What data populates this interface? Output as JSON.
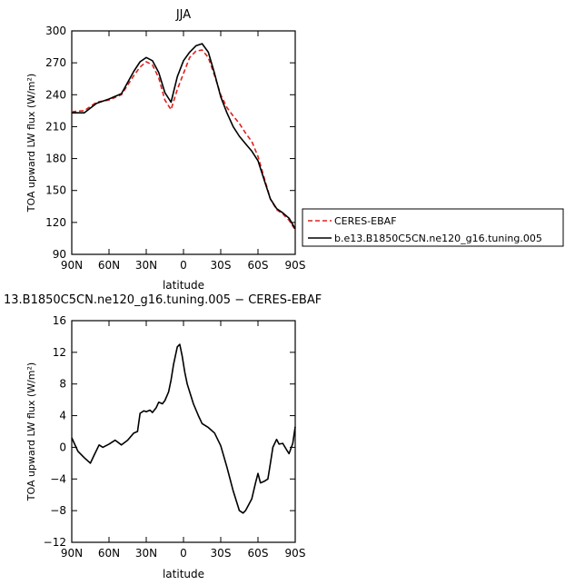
{
  "chart_data": [
    {
      "type": "line",
      "title": "JJA",
      "xlabel": "latitude",
      "ylabel": "TOA upward LW flux (W/m²)",
      "xlim": [
        90,
        -90
      ],
      "ylim": [
        90,
        300
      ],
      "xticks": [
        90,
        60,
        30,
        0,
        -30,
        -60,
        -90
      ],
      "xtick_labels": [
        "90N",
        "60N",
        "30N",
        "0",
        "30S",
        "60S",
        "90S"
      ],
      "yticks": [
        90,
        120,
        150,
        180,
        210,
        240,
        270,
        300
      ],
      "ytick_labels": [
        "90",
        "120",
        "150",
        "180",
        "210",
        "240",
        "270",
        "300"
      ],
      "legend_position": "right",
      "series": [
        {
          "name": "CERES-EBAF",
          "color": "#e0201b",
          "dash": "dashed",
          "x": [
            90,
            80,
            70,
            60,
            50,
            40,
            35,
            30,
            25,
            20,
            15,
            10,
            5,
            0,
            -5,
            -10,
            -15,
            -20,
            -25,
            -30,
            -35,
            -40,
            -45,
            -50,
            -55,
            -60,
            -65,
            -70,
            -75,
            -80,
            -85,
            -90
          ],
          "y": [
            224,
            225,
            233,
            235,
            240,
            258,
            266,
            271,
            268,
            256,
            235,
            226,
            245,
            260,
            275,
            281,
            282,
            275,
            258,
            240,
            228,
            220,
            213,
            204,
            196,
            182,
            162,
            142,
            132,
            128,
            122,
            113
          ]
        },
        {
          "name": "b.e13.B1850C5CN.ne120_g16.tuning.005",
          "color": "#000000",
          "dash": "solid",
          "x": [
            90,
            80,
            70,
            60,
            50,
            40,
            35,
            30,
            25,
            20,
            15,
            10,
            5,
            0,
            -5,
            -10,
            -15,
            -20,
            -25,
            -30,
            -35,
            -40,
            -45,
            -50,
            -55,
            -60,
            -65,
            -70,
            -75,
            -80,
            -85,
            -90
          ],
          "y": [
            223,
            223,
            232,
            236,
            241,
            262,
            271,
            275,
            272,
            261,
            242,
            233,
            257,
            272,
            280,
            286,
            288,
            280,
            260,
            238,
            223,
            210,
            201,
            194,
            187,
            178,
            160,
            142,
            133,
            129,
            124,
            114
          ]
        }
      ]
    },
    {
      "type": "line",
      "title": "13.B1850C5CN.ne120_g16.tuning.005 − CERES-EBAF",
      "xlabel": "latitude",
      "ylabel": "TOA upward LW flux (W/m²)",
      "xlim": [
        90,
        -90
      ],
      "ylim": [
        -12,
        16
      ],
      "xticks": [
        90,
        60,
        30,
        0,
        -30,
        -60,
        -90
      ],
      "xtick_labels": [
        "90N",
        "60N",
        "30N",
        "0",
        "30S",
        "60S",
        "90S"
      ],
      "yticks": [
        -12,
        -8,
        -4,
        0,
        4,
        8,
        12,
        16
      ],
      "ytick_labels": [
        "−12",
        "−8",
        "−4",
        "0",
        "4",
        "8",
        "12",
        "16"
      ],
      "series": [
        {
          "name": "",
          "color": "#000000",
          "dash": "solid",
          "x": [
            90,
            85,
            80,
            75,
            72,
            68,
            65,
            60,
            55,
            50,
            45,
            40,
            37,
            35,
            32,
            30,
            27,
            25,
            22,
            20,
            17,
            15,
            12,
            10,
            8,
            5,
            3,
            1,
            -1,
            -3,
            -5,
            -8,
            -12,
            -15,
            -20,
            -25,
            -30,
            -35,
            -40,
            -45,
            -48,
            -50,
            -55,
            -58,
            -60,
            -62,
            -65,
            -68,
            -70,
            -72,
            -75,
            -77,
            -80,
            -83,
            -85,
            -88,
            -90
          ],
          "y": [
            1.2,
            -0.5,
            -1.3,
            -2.0,
            -1.0,
            0.3,
            0.0,
            0.4,
            0.9,
            0.3,
            0.9,
            1.8,
            2.0,
            4.3,
            4.6,
            4.5,
            4.7,
            4.4,
            5.0,
            5.7,
            5.5,
            5.9,
            7.0,
            8.5,
            10.5,
            12.7,
            13.0,
            11.5,
            9.5,
            8.0,
            7.0,
            5.5,
            4.0,
            3.0,
            2.5,
            1.8,
            0.2,
            -2.5,
            -5.5,
            -8.0,
            -8.3,
            -8.0,
            -6.5,
            -4.5,
            -3.3,
            -4.5,
            -4.3,
            -4.0,
            -2.0,
            0.0,
            1.0,
            0.4,
            0.5,
            -0.3,
            -0.8,
            0.5,
            2.6
          ]
        }
      ]
    }
  ]
}
